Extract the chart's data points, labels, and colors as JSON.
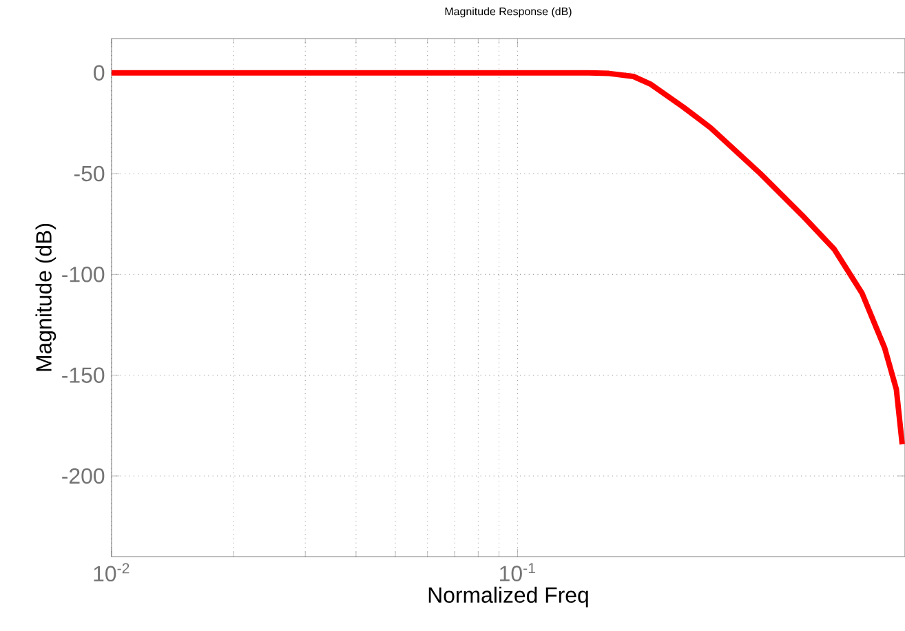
{
  "chart_data": {
    "type": "line",
    "title": "Magnitude Response (dB)",
    "xlabel": "Normalized Freq",
    "ylabel": "Magnitude (dB)",
    "log": "x",
    "grid": true,
    "x": [
      0.01,
      0.05,
      0.1,
      0.15,
      0.168,
      0.193,
      0.213,
      0.256,
      0.299,
      0.397,
      0.502,
      0.603,
      0.705,
      0.802,
      0.857,
      0.886
    ],
    "series": [
      {
        "color": "#ff0000",
        "values": [
          0,
          0,
          0,
          0,
          -0.3,
          -1.8,
          -5.7,
          -17,
          -27.3,
          -50.1,
          -70.6,
          -87.6,
          -109.2,
          -136.5,
          -157,
          -184.3
        ]
      }
    ],
    "xlim": [
      0.01,
      0.9
    ],
    "ylim": [
      -240,
      17
    ],
    "xticks": [
      {
        "value": 0.01,
        "label": "10$^{-2}$"
      },
      {
        "value": 0.1,
        "label": "10$^{-1}$"
      }
    ],
    "yticks": [
      -200,
      -150,
      -100,
      -50,
      0
    ]
  }
}
